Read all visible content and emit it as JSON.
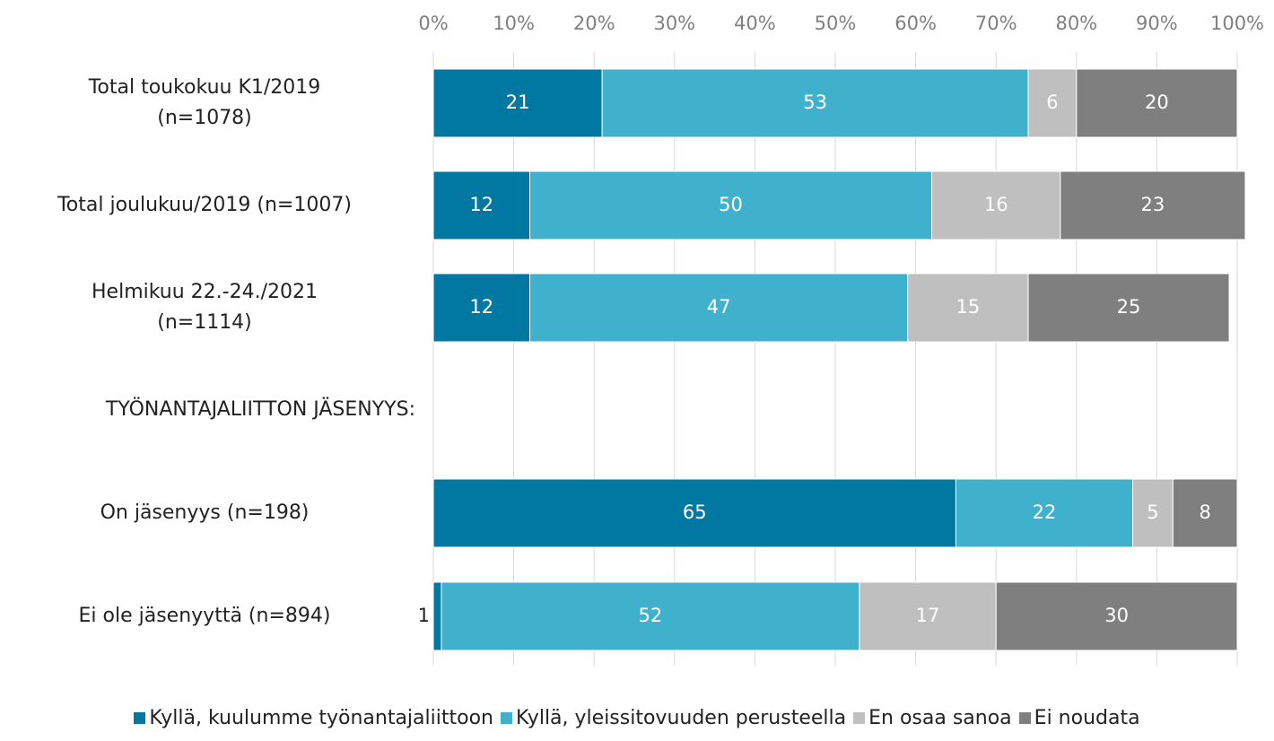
{
  "chart_data": {
    "type": "stacked_barh",
    "categories": [
      "Total toukokuu K1/2019\n(n=1078)",
      "Total joulukuu/2019 (n=1007)",
      "Helmikuu 22.-24./2021\n(n=1114)",
      "TYÖNANTAJALIITTON JÄSENYYS:",
      "On jäsenyys (n=198)",
      "Ei ole jäsenyyttä (n=894)"
    ],
    "series": [
      {
        "name": "Kyllä, kuulumme työnantajaliittoon",
        "color": "#0078a2",
        "values": [
          21,
          12,
          12,
          null,
          65,
          1
        ]
      },
      {
        "name": "Kyllä, yleissitovuuden perusteella",
        "color": "#40b1cc",
        "values": [
          53,
          50,
          47,
          null,
          22,
          52
        ]
      },
      {
        "name": "En osaa sanoa",
        "color": "#bfbfbf",
        "values": [
          6,
          16,
          15,
          null,
          5,
          17
        ]
      },
      {
        "name": "Ei noudata",
        "color": "#7f7f7f",
        "values": [
          20,
          23,
          25,
          null,
          8,
          30
        ]
      }
    ],
    "xlim": [
      0,
      100
    ],
    "xticks": [
      {
        "value": 0,
        "label": "0%"
      },
      {
        "value": 10,
        "label": "10%"
      },
      {
        "value": 20,
        "label": "20%"
      },
      {
        "value": 30,
        "label": "30%"
      },
      {
        "value": 40,
        "label": "40%"
      },
      {
        "value": 50,
        "label": "50%"
      },
      {
        "value": 60,
        "label": "60%"
      },
      {
        "value": 70,
        "label": "70%"
      },
      {
        "value": 80,
        "label": "80%"
      },
      {
        "value": 90,
        "label": "90%"
      },
      {
        "value": 100,
        "label": "100%"
      }
    ],
    "grid": true,
    "legend": "bottom"
  }
}
